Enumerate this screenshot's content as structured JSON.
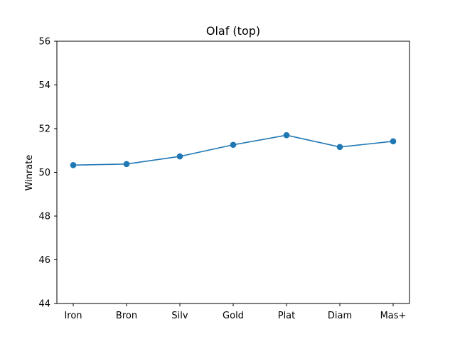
{
  "chart_data": {
    "type": "line",
    "title": "Olaf (top)",
    "xlabel": "",
    "ylabel": "Winrate",
    "categories": [
      "Iron",
      "Bron",
      "Silv",
      "Gold",
      "Plat",
      "Diam",
      "Mas+"
    ],
    "series": [
      {
        "values": [
          50.33,
          50.38,
          50.73,
          51.26,
          51.7,
          51.16,
          51.42
        ]
      }
    ],
    "ylim": [
      44,
      56
    ],
    "yticks": [
      44,
      46,
      48,
      50,
      52,
      54,
      56
    ],
    "grid": false,
    "marker": "circle",
    "line_color": "#1f77b4"
  }
}
